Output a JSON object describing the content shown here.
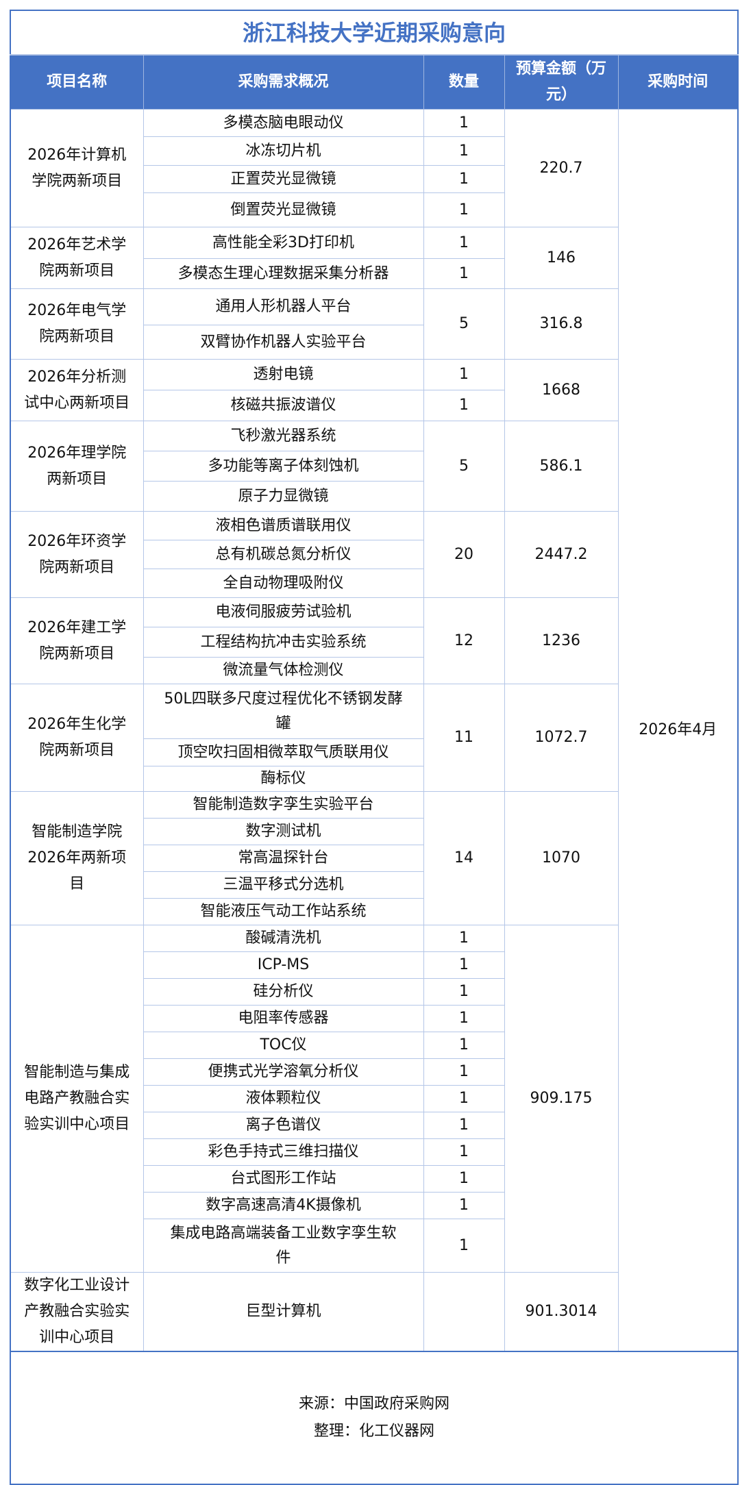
{
  "title": "浙江科技大学近期采购意向",
  "headers": {
    "project": "项目名称",
    "items": "采购需求概况",
    "qty": "数量",
    "budget": "预算金额（万\n元）",
    "time": "采购时间"
  },
  "time_value": "2026年4月",
  "groups": [
    {
      "name": "2026年计算机\n学院两新项目",
      "budget": "220.7",
      "merged_qty": false,
      "items": [
        {
          "name": "多模态脑电眼动仪",
          "qty": "1"
        },
        {
          "name": "冰冻切片机",
          "qty": "1"
        },
        {
          "name": "正置荧光显微镜",
          "qty": "1"
        },
        {
          "name": "倒置荧光显微镜",
          "qty": "1"
        }
      ]
    },
    {
      "name": "2026年艺术学\n院两新项目",
      "budget": "146",
      "merged_qty": false,
      "items": [
        {
          "name": "高性能全彩3D打印机",
          "qty": "1"
        },
        {
          "name": "多模态生理心理数据采集分析器",
          "qty": "1"
        }
      ]
    },
    {
      "name": "2026年电气学\n院两新项目",
      "budget": "316.8",
      "merged_qty": true,
      "qty": "5",
      "items": [
        {
          "name": "通用人形机器人平台"
        },
        {
          "name": "双臂协作机器人实验平台"
        }
      ]
    },
    {
      "name": "2026年分析测\n试中心两新项目",
      "budget": "1668",
      "merged_qty": false,
      "items": [
        {
          "name": "透射电镜",
          "qty": "1"
        },
        {
          "name": "核磁共振波谱仪",
          "qty": "1"
        }
      ]
    },
    {
      "name": "2026年理学院\n两新项目",
      "budget": "586.1",
      "merged_qty": true,
      "qty": "5",
      "items": [
        {
          "name": "飞秒激光器系统"
        },
        {
          "name": "多功能等离子体刻蚀机"
        },
        {
          "name": "原子力显微镜"
        }
      ]
    },
    {
      "name": "2026年环资学\n院两新项目",
      "budget": "2447.2",
      "merged_qty": true,
      "qty": "20",
      "items": [
        {
          "name": "液相色谱质谱联用仪"
        },
        {
          "name": "总有机碳总氮分析仪"
        },
        {
          "name": "全自动物理吸附仪"
        }
      ]
    },
    {
      "name": "2026年建工学\n院两新项目",
      "budget": "1236",
      "merged_qty": true,
      "qty": "12",
      "items": [
        {
          "name": "电液伺服疲劳试验机"
        },
        {
          "name": "工程结构抗冲击实验系统"
        },
        {
          "name": "微流量气体检测仪"
        }
      ]
    },
    {
      "name": "2026年生化学\n院两新项目",
      "budget": "1072.7",
      "merged_qty": true,
      "qty": "11",
      "items": [
        {
          "name": "50L四联多尺度过程优化不锈钢发酵\n罐"
        },
        {
          "name": "顶空吹扫固相微萃取气质联用仪"
        },
        {
          "name": "酶标仪"
        }
      ]
    },
    {
      "name": "智能制造学院\n2026年两新项\n目",
      "budget": "1070",
      "merged_qty": true,
      "qty": "14",
      "items": [
        {
          "name": "智能制造数字孪生实验平台"
        },
        {
          "name": "数字测试机"
        },
        {
          "name": "常高温探针台"
        },
        {
          "name": "三温平移式分选机"
        },
        {
          "name": "智能液压气动工作站系统"
        }
      ]
    },
    {
      "name": "智能制造与集成\n电路产教融合实\n验实训中心项目",
      "budget": "909.175",
      "merged_qty": false,
      "items": [
        {
          "name": "酸碱清洗机",
          "qty": "1"
        },
        {
          "name": "ICP-MS",
          "qty": "1"
        },
        {
          "name": "硅分析仪",
          "qty": "1"
        },
        {
          "name": "电阻率传感器",
          "qty": "1"
        },
        {
          "name": "TOC仪",
          "qty": "1"
        },
        {
          "name": "便携式光学溶氧分析仪",
          "qty": "1"
        },
        {
          "name": "液体颗粒仪",
          "qty": "1"
        },
        {
          "name": "离子色谱仪",
          "qty": "1"
        },
        {
          "name": "彩色手持式三维扫描仪",
          "qty": "1"
        },
        {
          "name": "台式图形工作站",
          "qty": "1"
        },
        {
          "name": "数字高速高清4K摄像机",
          "qty": "1"
        },
        {
          "name": "集成电路高端装备工业数字孪生软\n件",
          "qty": "1"
        }
      ]
    },
    {
      "name": "数字化工业设计\n产教融合实验实\n训中心项目",
      "budget": "901.3014",
      "merged_qty": true,
      "qty": "",
      "items": [
        {
          "name": "巨型计算机"
        }
      ]
    }
  ],
  "footer": {
    "source": "来源：中国政府采购网",
    "compiled": "整理：化工仪器网"
  },
  "colors": {
    "accent": "#4472c4",
    "grid": "#b4c6e7"
  }
}
